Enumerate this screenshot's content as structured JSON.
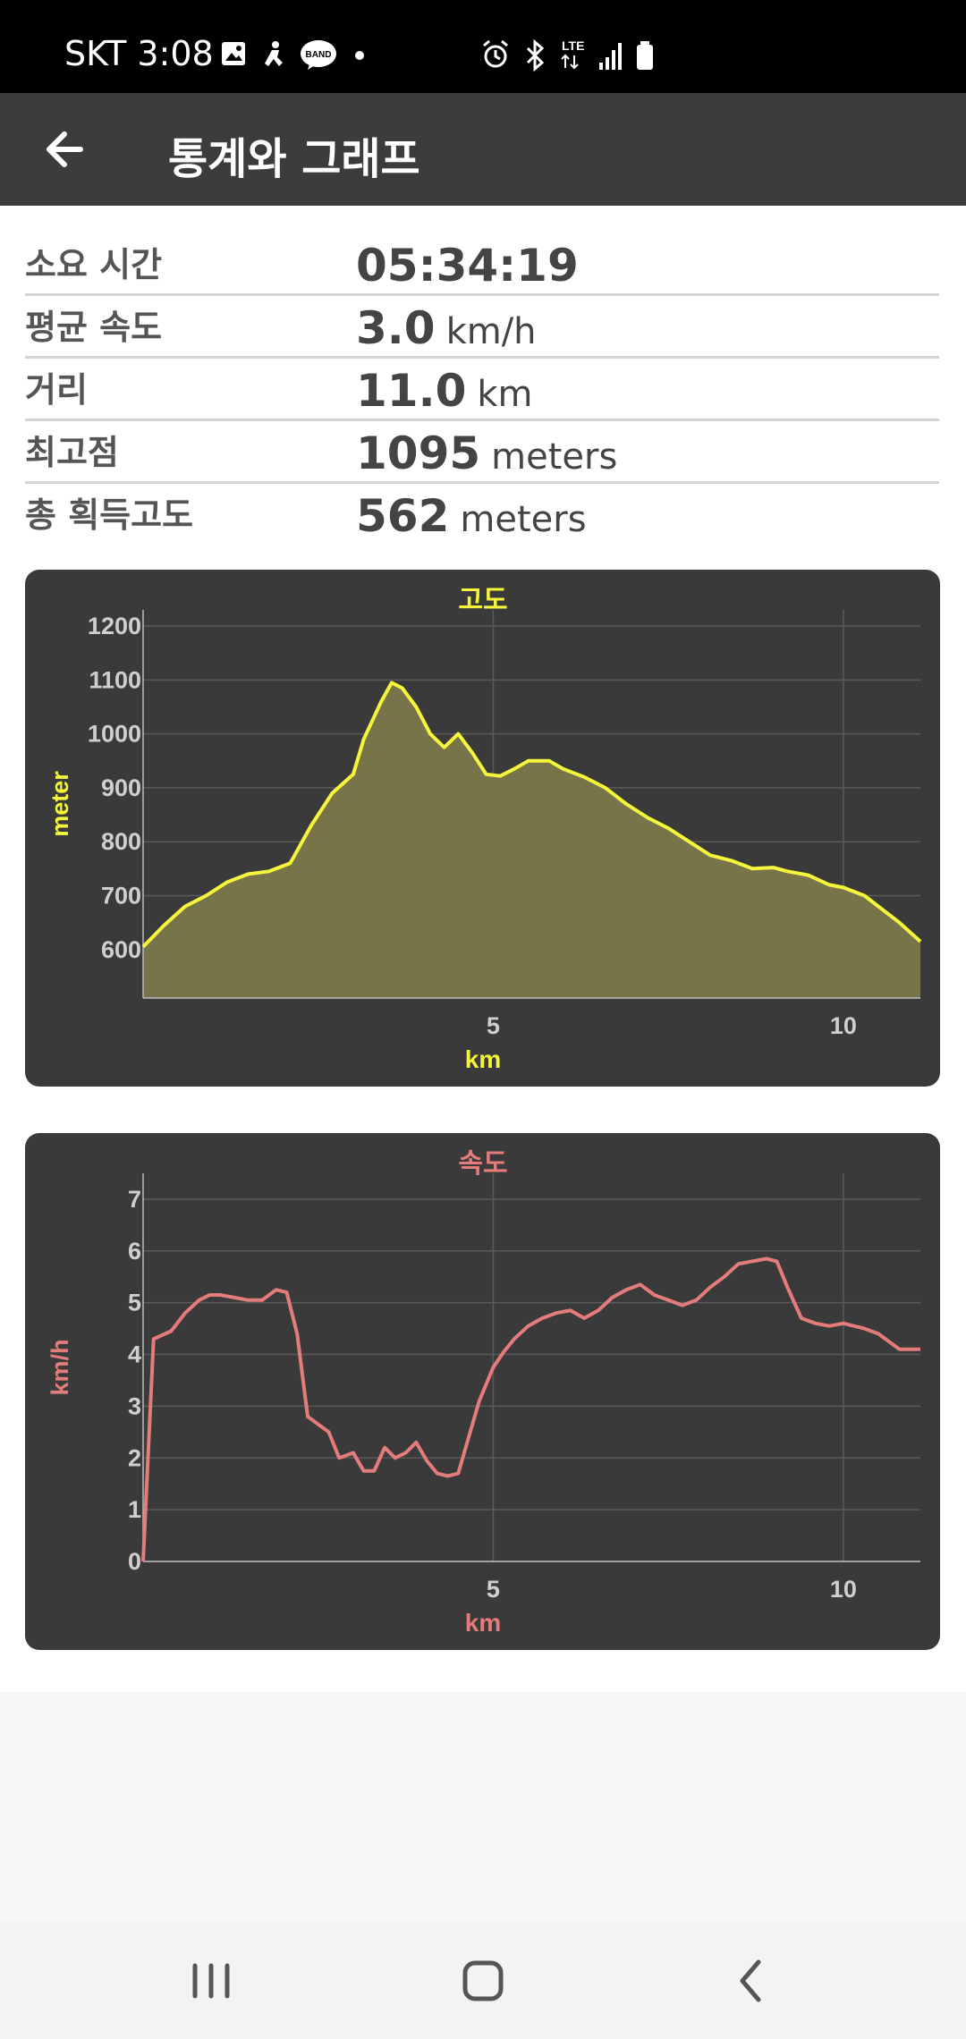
{
  "status_bar": {
    "time": "SKT 3:08",
    "left_icons": [
      "gallery-icon",
      "run-icon",
      "band-icon",
      "dot-icon"
    ],
    "right_icons": [
      "alarm-icon",
      "bluetooth-icon",
      "lte-icon",
      "signal-icon",
      "battery-icon"
    ],
    "band_label": "BAND",
    "lte_label": "LTE"
  },
  "toolbar": {
    "title": "통계와 그래프",
    "back_icon": "arrow-left-icon"
  },
  "stats": [
    {
      "label": "소요 시간",
      "value": "05:34:19",
      "unit": ""
    },
    {
      "label": "평균 속도",
      "value": "3.0",
      "unit": "km/h"
    },
    {
      "label": "거리",
      "value": "11.0",
      "unit": "km"
    },
    {
      "label": "최고점",
      "value": "1095",
      "unit": "meters"
    },
    {
      "label": "총 획득고도",
      "value": "562",
      "unit": "meters"
    }
  ],
  "chart_data": [
    {
      "type": "area",
      "title": "고도",
      "xlabel": "km",
      "ylabel": "meter",
      "xlim": [
        0,
        11.1
      ],
      "ylim": [
        510,
        1230
      ],
      "xticks": [
        5,
        10
      ],
      "yticks": [
        600,
        700,
        800,
        900,
        1000,
        1100,
        1200
      ],
      "grid": true,
      "colors": {
        "line": "#f5f53c",
        "fill": "#77744a",
        "label": "#f5f53c"
      },
      "series": [
        {
          "x": [
            0,
            0.3,
            0.6,
            0.9,
            1.2,
            1.5,
            1.8,
            2.1,
            2.4,
            2.7,
            3.0,
            3.15,
            3.4,
            3.55,
            3.7,
            3.9,
            4.1,
            4.3,
            4.5,
            4.7,
            4.9,
            5.1,
            5.3,
            5.5,
            5.8,
            6.0,
            6.3,
            6.6,
            6.9,
            7.2,
            7.5,
            7.8,
            8.1,
            8.4,
            8.7,
            9.0,
            9.2,
            9.5,
            9.8,
            10.0,
            10.3,
            10.5,
            10.8,
            11.1
          ],
          "y": [
            605,
            645,
            680,
            700,
            725,
            740,
            745,
            760,
            830,
            890,
            925,
            990,
            1060,
            1095,
            1085,
            1050,
            1000,
            975,
            1000,
            965,
            925,
            922,
            935,
            950,
            950,
            935,
            920,
            900,
            870,
            845,
            825,
            800,
            775,
            765,
            750,
            752,
            745,
            738,
            720,
            715,
            700,
            680,
            650,
            615
          ]
        }
      ]
    },
    {
      "type": "line",
      "title": "속도",
      "xlabel": "km",
      "ylabel": "km/h",
      "xlim": [
        0,
        11.1
      ],
      "ylim": [
        0,
        7.5
      ],
      "xticks": [
        5,
        10
      ],
      "yticks": [
        0,
        1,
        2,
        3,
        4,
        5,
        6,
        7
      ],
      "grid": true,
      "colors": {
        "line": "#e47c7c",
        "label": "#e47c7c"
      },
      "series": [
        {
          "x": [
            0,
            0.15,
            0.4,
            0.6,
            0.8,
            0.95,
            1.1,
            1.3,
            1.5,
            1.7,
            1.9,
            2.05,
            2.2,
            2.35,
            2.5,
            2.65,
            2.8,
            3.0,
            3.15,
            3.3,
            3.45,
            3.6,
            3.75,
            3.9,
            4.05,
            4.2,
            4.35,
            4.5,
            4.65,
            4.8,
            5.0,
            5.15,
            5.3,
            5.5,
            5.7,
            5.9,
            6.1,
            6.3,
            6.5,
            6.7,
            6.9,
            7.1,
            7.3,
            7.5,
            7.7,
            7.9,
            8.1,
            8.3,
            8.5,
            8.7,
            8.9,
            9.05,
            9.2,
            9.4,
            9.6,
            9.8,
            10.0,
            10.3,
            10.5,
            10.8,
            11.1
          ],
          "y": [
            0,
            4.3,
            4.45,
            4.8,
            5.05,
            5.15,
            5.15,
            5.1,
            5.05,
            5.05,
            5.25,
            5.2,
            4.4,
            2.8,
            2.65,
            2.5,
            2.0,
            2.1,
            1.75,
            1.75,
            2.2,
            2.0,
            2.1,
            2.3,
            1.95,
            1.7,
            1.65,
            1.7,
            2.4,
            3.1,
            3.75,
            4.05,
            4.3,
            4.55,
            4.7,
            4.8,
            4.85,
            4.7,
            4.85,
            5.1,
            5.25,
            5.35,
            5.15,
            5.05,
            4.95,
            5.05,
            5.3,
            5.5,
            5.75,
            5.8,
            5.85,
            5.8,
            5.3,
            4.7,
            4.6,
            4.55,
            4.6,
            4.5,
            4.4,
            4.1,
            4.1
          ]
        }
      ]
    }
  ],
  "nav_bar": {
    "icons": [
      "recents-icon",
      "home-icon",
      "back-icon"
    ]
  }
}
